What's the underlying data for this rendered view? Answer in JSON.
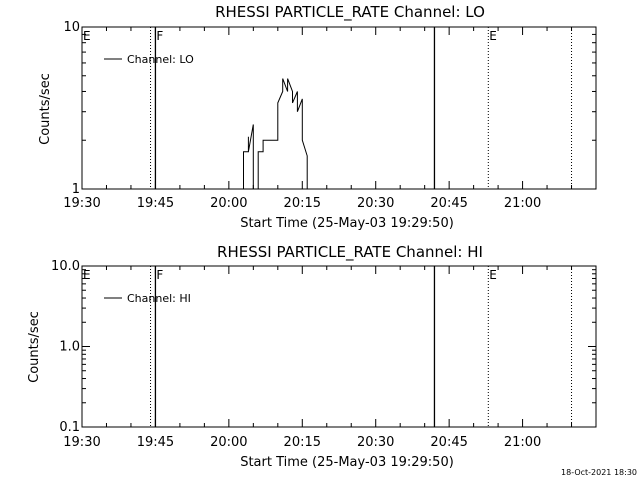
{
  "chart_data": [
    {
      "type": "line",
      "title": "RHESSI PARTICLE_RATE Channel: LO",
      "xlabel": "Start Time (25-May-03 19:29:50)",
      "ylabel": "Counts/sec",
      "yscale": "log",
      "ylim": [
        1,
        10
      ],
      "xlim": [
        "19:30",
        "21:15"
      ],
      "x_ticks": [
        "19:30",
        "19:45",
        "20:00",
        "20:15",
        "20:30",
        "20:45",
        "21:00"
      ],
      "y_ticks": [
        "1",
        "10"
      ],
      "legend": "top-left",
      "series": [
        {
          "name": "Channel: LO",
          "x": [
            "20:03",
            "20:03",
            "20:04",
            "20:04",
            "20:04",
            "20:05",
            "20:05",
            "20:06",
            "20:06",
            "20:07",
            "20:07",
            "20:08",
            "20:09",
            "20:10",
            "20:10",
            "20:11",
            "20:11",
            "20:12",
            "20:12",
            "20:13",
            "20:13",
            "20:14",
            "20:14",
            "20:15",
            "20:15",
            "20:16",
            "20:16"
          ],
          "y": [
            1,
            1.7,
            1.7,
            2.1,
            1.7,
            2.5,
            1,
            1,
            1.7,
            1.7,
            2.0,
            2.0,
            2.0,
            2.0,
            3.4,
            4.0,
            4.8,
            4.0,
            4.8,
            4.0,
            3.4,
            4.0,
            3.0,
            3.6,
            2.0,
            1.6,
            1
          ]
        }
      ],
      "flags": [
        {
          "label": "E",
          "x": "19:30"
        },
        {
          "label": "F",
          "x": "19:45"
        },
        {
          "label": "E",
          "x": "20:53"
        }
      ],
      "solid_lines": [
        "19:45",
        "20:42"
      ],
      "dotted_lines": [
        "19:44",
        "20:53",
        "21:10"
      ]
    },
    {
      "type": "line",
      "title": "RHESSI PARTICLE_RATE Channel: HI",
      "xlabel": "Start Time (25-May-03 19:29:50)",
      "ylabel": "Counts/sec",
      "yscale": "log",
      "ylim": [
        0.1,
        10
      ],
      "xlim": [
        "19:30",
        "21:15"
      ],
      "x_ticks": [
        "19:30",
        "19:45",
        "20:00",
        "20:15",
        "20:30",
        "20:45",
        "21:00"
      ],
      "y_ticks": [
        "0.1",
        "1.0",
        "10.0"
      ],
      "legend": "top-left",
      "series": [
        {
          "name": "Channel: HI",
          "x": [],
          "y": []
        }
      ],
      "flags": [
        {
          "label": "E",
          "x": "19:30"
        },
        {
          "label": "F",
          "x": "19:45"
        },
        {
          "label": "E",
          "x": "20:53"
        }
      ],
      "solid_lines": [
        "19:45",
        "20:42"
      ],
      "dotted_lines": [
        "19:44",
        "20:53",
        "21:10"
      ]
    }
  ],
  "footer": {
    "timestamp": "18-Oct-2021 18:30"
  }
}
